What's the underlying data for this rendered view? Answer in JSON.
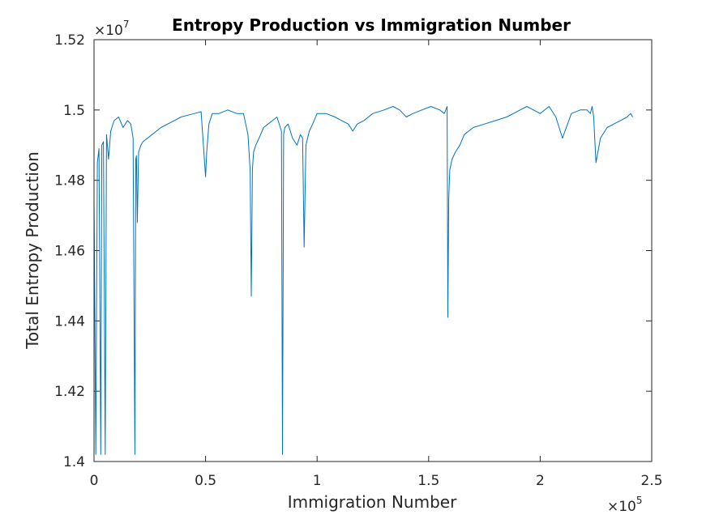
{
  "chart_data": {
    "type": "line",
    "title": "Entropy Production vs Immigration Number",
    "xlabel": "Immigration Number",
    "ylabel": "Total Entropy Production",
    "x_multiplier": {
      "base": "×10",
      "exp": "5"
    },
    "y_multiplier": {
      "base": "×10",
      "exp": "7"
    },
    "xlim": [
      0,
      250000
    ],
    "ylim": [
      14000000,
      15200000
    ],
    "x_ticks": [
      0,
      50000,
      100000,
      150000,
      200000,
      250000
    ],
    "x_tick_labels": [
      "0",
      "0.5",
      "1",
      "1.5",
      "2",
      "2.5"
    ],
    "y_ticks": [
      14000000,
      14200000,
      14400000,
      14600000,
      14800000,
      15000000,
      15200000
    ],
    "y_tick_labels": [
      "1.4",
      "1.42",
      "1.44",
      "1.46",
      "1.48",
      "1.5",
      "1.52"
    ],
    "grid": false,
    "line_color": "#0072BD",
    "series": [
      {
        "x": [
          0,
          800,
          1500,
          2200,
          3000,
          3500,
          4200,
          5000,
          5600,
          6500,
          7500,
          9000,
          11000,
          13000,
          15000,
          16500,
          17500,
          18300,
          18700,
          19000,
          19400,
          20000,
          20500,
          21000,
          22000,
          24000,
          26000,
          28000,
          30000,
          33000,
          36000,
          39000,
          42000,
          45000,
          48000,
          50000,
          50500,
          51500,
          53000,
          56000,
          60000,
          64000,
          67000,
          69000,
          70000,
          70500,
          71000,
          71500,
          72500,
          74000,
          76000,
          78000,
          80000,
          82000,
          84000,
          84500,
          85000,
          85500,
          87000,
          89000,
          91000,
          92500,
          93500,
          94200,
          95000,
          96500,
          98000,
          100000,
          104000,
          108000,
          111000,
          114000,
          116000,
          118000,
          121000,
          125000,
          130000,
          134000,
          137000,
          140000,
          143000,
          147000,
          151000,
          155000,
          157000,
          158300,
          158600,
          159000,
          159500,
          160500,
          162000,
          164000,
          166000,
          170000,
          175000,
          180000,
          185000,
          188000,
          191000,
          194000,
          197000,
          200000,
          204000,
          207000,
          210000,
          214000,
          218000,
          221000,
          222500,
          223300,
          224000,
          225000,
          227000,
          230000,
          233000,
          236000,
          239000,
          240500,
          241500
        ],
        "y": [
          14750000,
          14020000,
          14850000,
          14890000,
          14020000,
          14900000,
          14910000,
          14020000,
          14930000,
          14860000,
          14940000,
          14970000,
          14980000,
          14950000,
          14970000,
          14960000,
          14920000,
          14020000,
          14860000,
          14870000,
          14680000,
          14880000,
          14890000,
          14900000,
          14910000,
          14920000,
          14930000,
          14940000,
          14950000,
          14960000,
          14970000,
          14980000,
          14985000,
          14990000,
          14995000,
          14810000,
          14880000,
          14960000,
          14990000,
          14990000,
          15000000,
          14990000,
          14990000,
          14930000,
          14830000,
          14470000,
          14830000,
          14880000,
          14900000,
          14920000,
          14950000,
          14960000,
          14970000,
          14980000,
          14940000,
          14020000,
          14930000,
          14950000,
          14960000,
          14920000,
          14900000,
          14930000,
          14920000,
          14610000,
          14900000,
          14940000,
          14960000,
          14990000,
          14990000,
          14980000,
          14970000,
          14960000,
          14940000,
          14960000,
          14970000,
          14990000,
          15000000,
          15010000,
          15000000,
          14980000,
          14990000,
          15000000,
          15010000,
          15000000,
          14990000,
          15010000,
          14410000,
          14750000,
          14830000,
          14860000,
          14880000,
          14900000,
          14930000,
          14950000,
          14960000,
          14970000,
          14980000,
          14990000,
          15000000,
          15010000,
          15000000,
          14990000,
          15010000,
          14980000,
          14920000,
          14990000,
          15000000,
          15000000,
          14990000,
          15010000,
          14980000,
          14850000,
          14920000,
          14950000,
          14960000,
          14970000,
          14980000,
          14990000,
          14980000
        ]
      }
    ]
  }
}
